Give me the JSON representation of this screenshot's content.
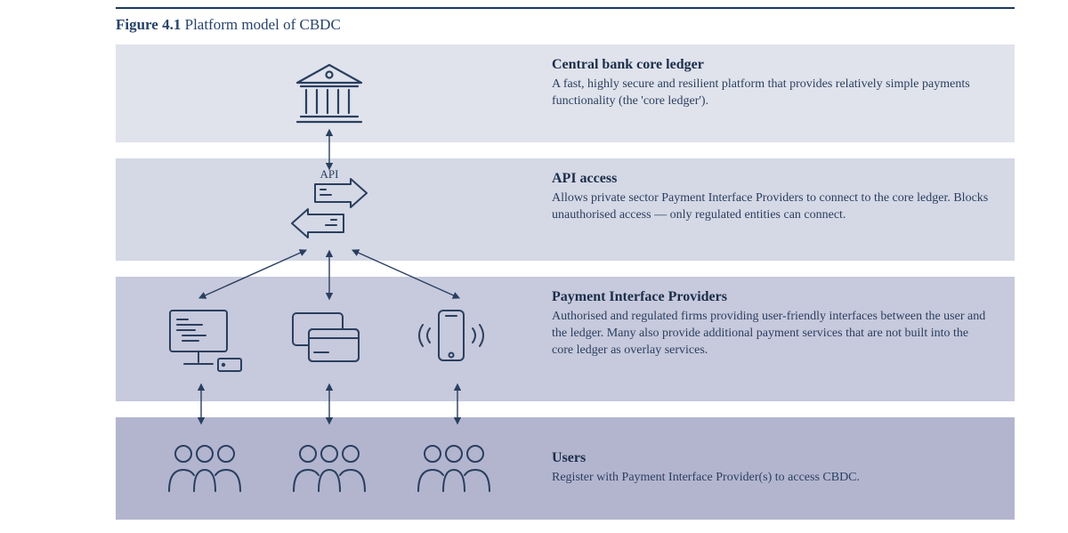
{
  "figure": {
    "number": "Figure 4.1",
    "title": "Platform model of CBDC"
  },
  "colors": {
    "rule": "#1a3a5c",
    "heading": "#1a2e4a",
    "body": "#2a3f5f",
    "icon": "#2a3f5f",
    "layer_bg": [
      "#e0e3ec",
      "#d5d8e5",
      "#c7c9dc",
      "#b3b5cf"
    ]
  },
  "layout": {
    "layer_heights": [
      110,
      115,
      140,
      115
    ],
    "layer_gap": 18
  },
  "layers": [
    {
      "key": "core",
      "heading": "Central bank core ledger",
      "description": "A fast, highly secure and resilient platform that provides relatively simple payments functionality (the 'core ledger')."
    },
    {
      "key": "api",
      "heading": "API access",
      "description": "Allows private sector Payment Interface Providers to connect to the core ledger. Blocks unauthorised access — only regulated entities can connect."
    },
    {
      "key": "pip",
      "heading": "Payment Interface Providers",
      "description": "Authorised and regulated firms providing user-friendly interfaces between the user and the ledger. Many also provide additional payment services that are not built into the core ledger as overlay services."
    },
    {
      "key": "users",
      "heading": "Users",
      "description": "Register with Payment Interface Provider(s) to access CBDC."
    }
  ],
  "icons": {
    "bank_label": "bank-icon",
    "api_label_text": "API",
    "providers": [
      "computer",
      "cards",
      "phone"
    ],
    "user_group_count": 3
  },
  "arrows": {
    "stroke": "#2a3f5f",
    "width": 1.4
  }
}
